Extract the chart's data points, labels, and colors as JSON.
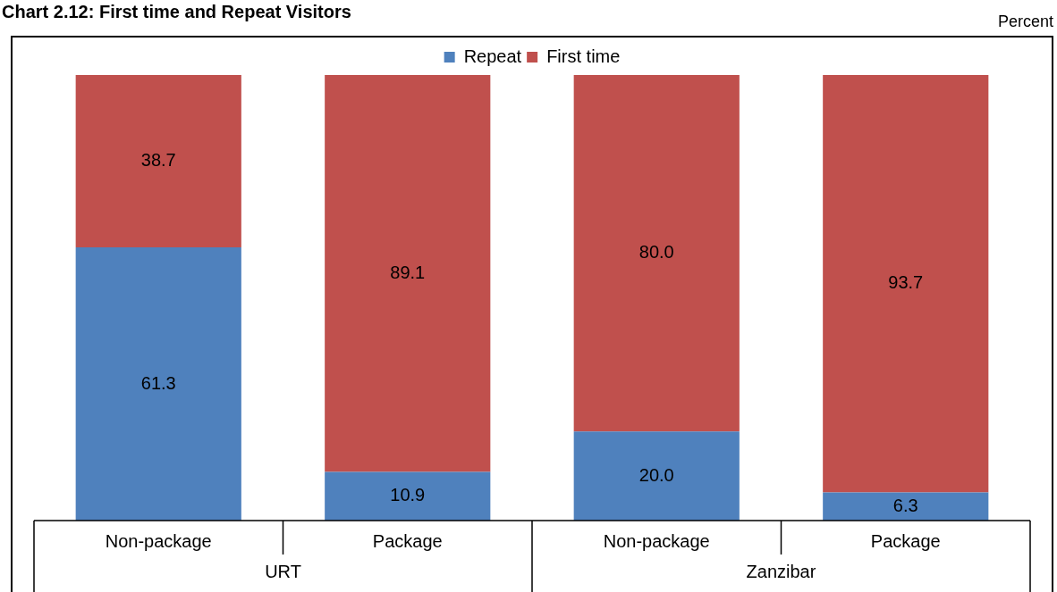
{
  "chart_data": {
    "type": "bar",
    "title": "Chart 2.12: First time and Repeat Visitors",
    "ylabel": "Percent",
    "categories": [
      "Non-package",
      "Package",
      "Non-package",
      "Package"
    ],
    "series": [
      {
        "name": "Repeat",
        "color": "#4f81bd",
        "values": [
          61.3,
          10.9,
          20.0,
          6.3
        ],
        "value_labels": [
          "61.3",
          "10.9",
          "20.0",
          "6.3"
        ]
      },
      {
        "name": "First time",
        "color": "#c0504d",
        "values": [
          38.7,
          89.1,
          80.0,
          93.7
        ],
        "value_labels": [
          "38.7",
          "89.1",
          "80.0",
          "93.7"
        ]
      }
    ],
    "stacked": true,
    "legend": "top",
    "annotations": [
      "URT",
      "Zanzibar"
    ]
  }
}
